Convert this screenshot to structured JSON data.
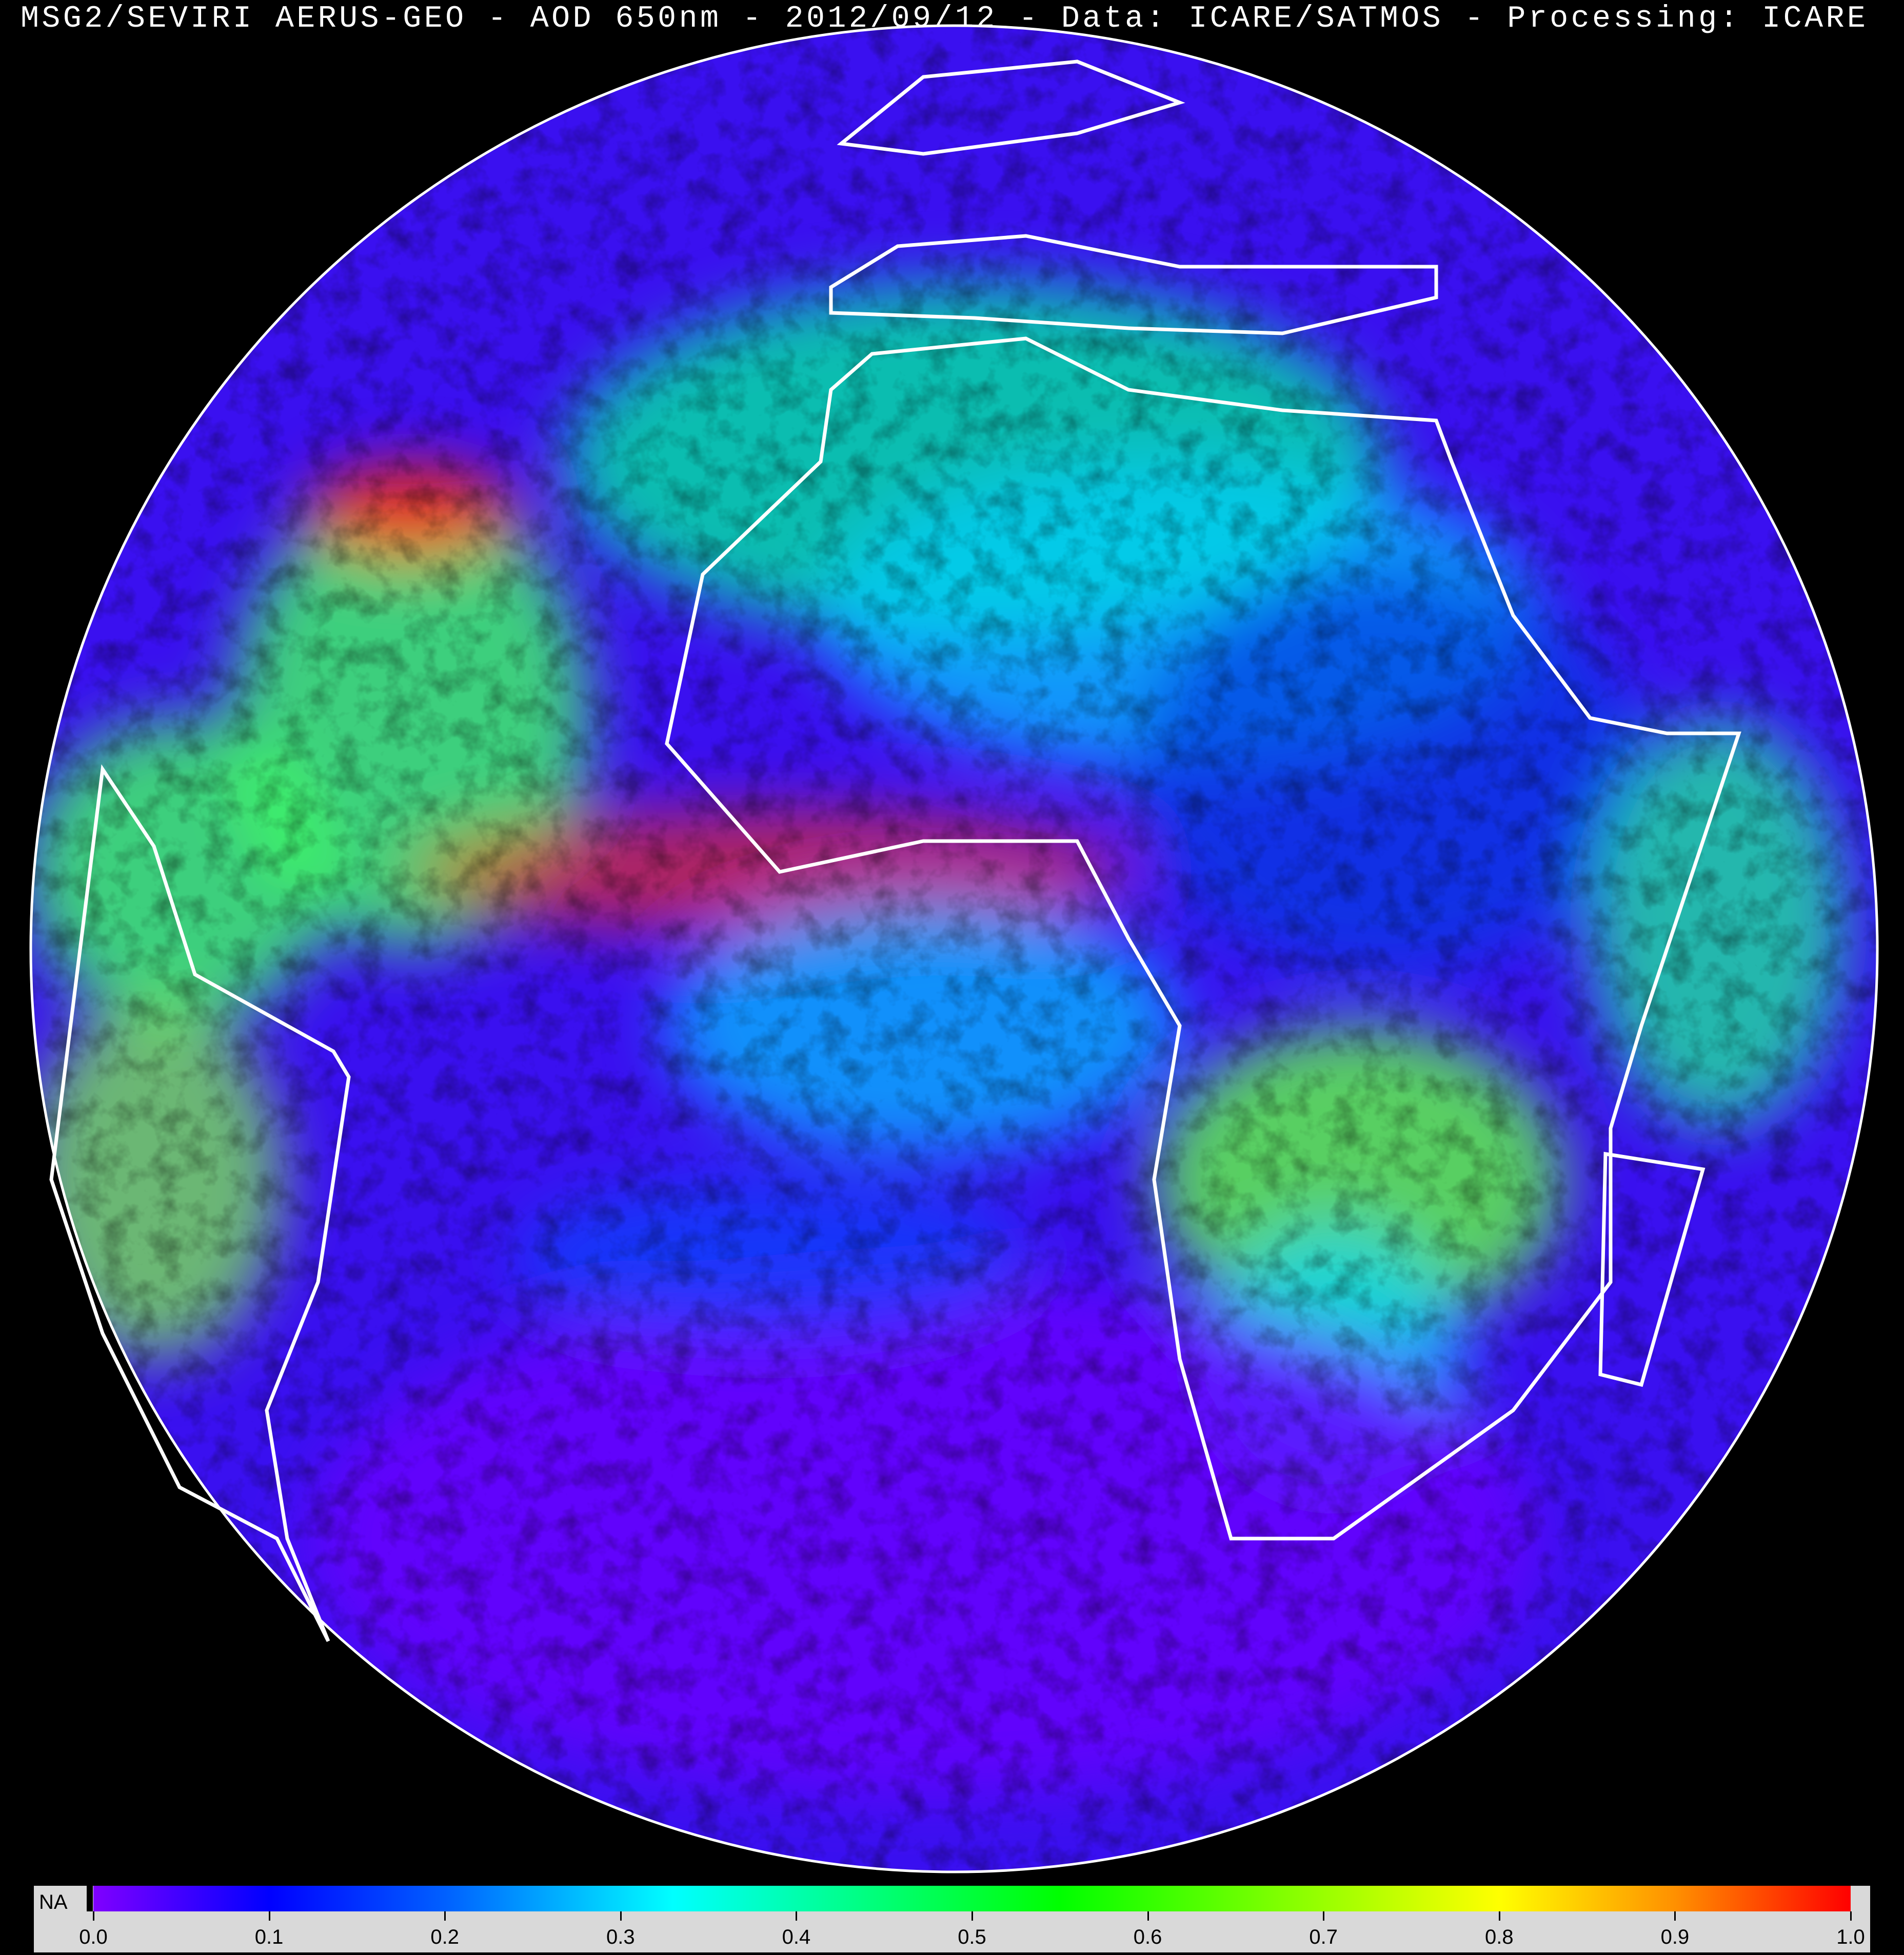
{
  "title": "MSG2/SEVIRI AERUS-GEO - AOD 650nm - 2012/09/12 - Data: ICARE/SATMOS - Processing: ICARE",
  "map": {
    "projection": "geostationary full disk",
    "variable": "Aerosol Optical Depth at 650nm",
    "coastline_color": "#ffffff",
    "background_color": "#000000"
  },
  "colorbar": {
    "na_label": "NA",
    "na_color": "#000000",
    "range": [
      0.0,
      1.0
    ],
    "stops": [
      {
        "value": 0.0,
        "color": "#8000ff"
      },
      {
        "value": 0.1,
        "color": "#0000ff"
      },
      {
        "value": 0.2,
        "color": "#0060ff"
      },
      {
        "value": 0.33,
        "color": "#00ffff"
      },
      {
        "value": 0.55,
        "color": "#00ff00"
      },
      {
        "value": 0.8,
        "color": "#ffff00"
      },
      {
        "value": 0.9,
        "color": "#ff9000"
      },
      {
        "value": 1.0,
        "color": "#ff0000"
      }
    ],
    "tick_labels": [
      "0.0",
      "0.1",
      "0.2",
      "0.3",
      "0.4",
      "0.5",
      "0.6",
      "0.7",
      "0.8",
      "0.9",
      "1.0"
    ]
  }
}
